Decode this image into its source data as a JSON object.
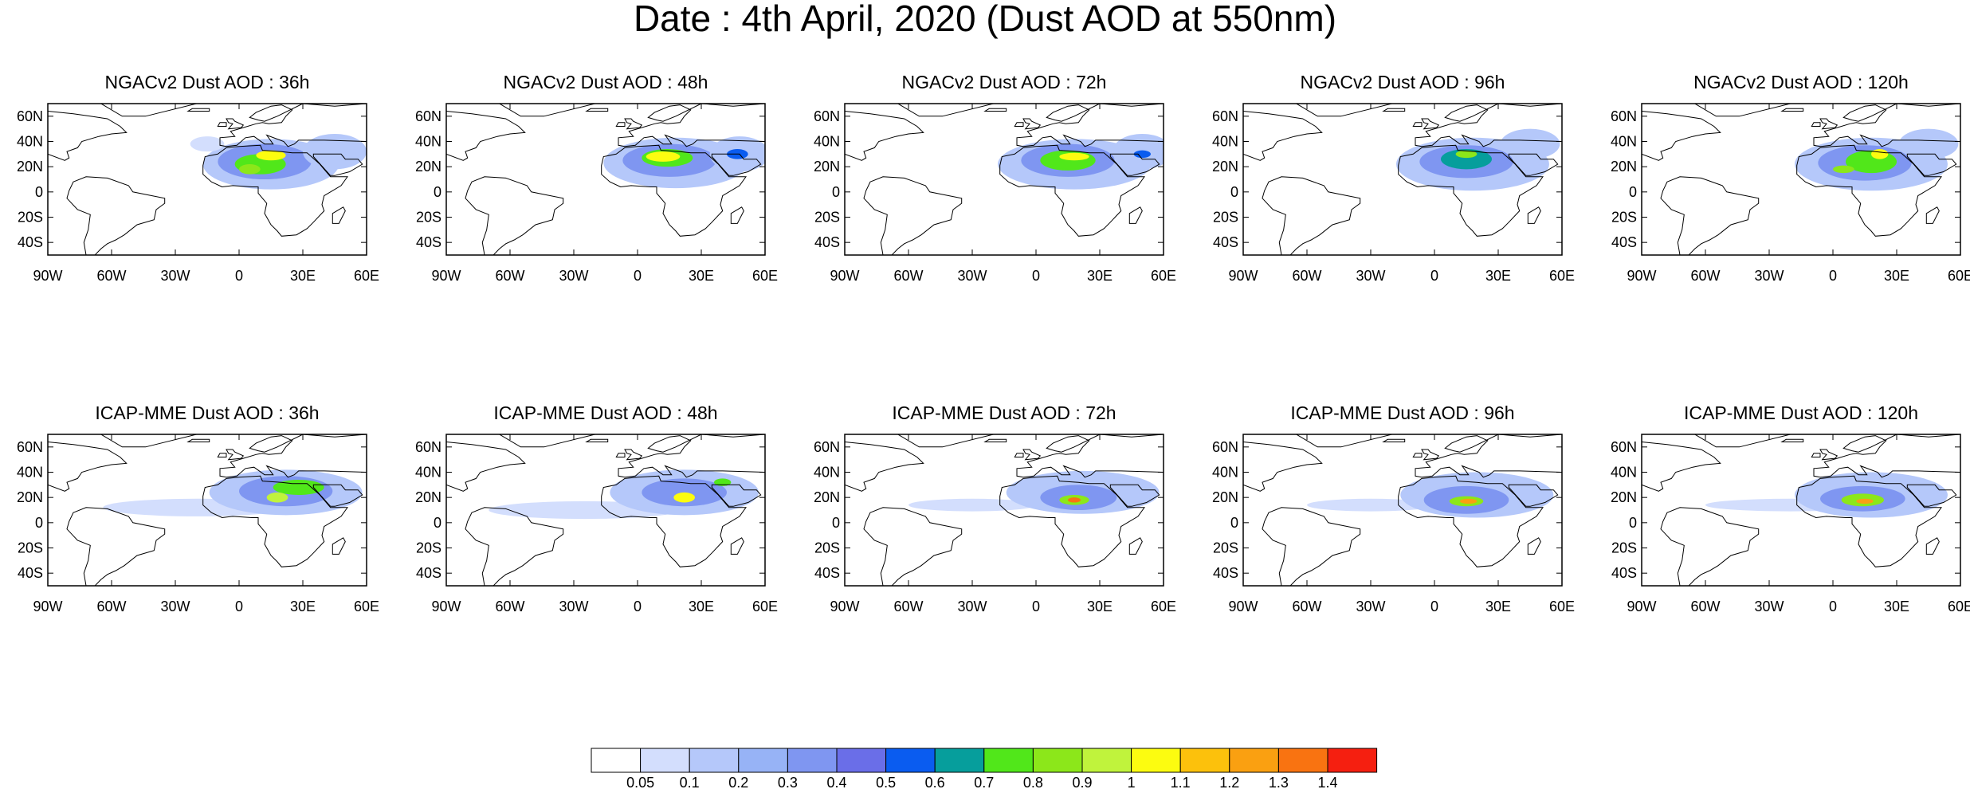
{
  "title": "Date : 4th April, 2020 (Dust AOD at 550nm)",
  "axes": {
    "lat_labels": [
      "60N",
      "40N",
      "20N",
      "0",
      "20S",
      "40S"
    ],
    "lat_values": [
      60,
      40,
      20,
      0,
      -20,
      -40
    ],
    "lon_labels": [
      "90W",
      "60W",
      "30W",
      "0",
      "30E",
      "60E"
    ],
    "lon_values": [
      -90,
      -60,
      -30,
      0,
      30,
      60
    ],
    "lon_range": [
      -90,
      60
    ],
    "lat_range": [
      -50,
      70
    ]
  },
  "colors": {
    "land_outline": "#000000",
    "ocean": "#ffffff"
  },
  "colorbar": {
    "labels": [
      "0.05",
      "0.1",
      "0.2",
      "0.3",
      "0.4",
      "0.5",
      "0.6",
      "0.7",
      "0.8",
      "0.9",
      "1",
      "1.1",
      "1.2",
      "1.3",
      "1.4"
    ],
    "colors": [
      "#ffffff",
      "#d3defd",
      "#b5c8fa",
      "#97b3f6",
      "#7f96f1",
      "#6a6ee8",
      "#0a5cf0",
      "#069e9c",
      "#51e71a",
      "#8ce71a",
      "#c0f33c",
      "#fcfc10",
      "#fcc10c",
      "#faa011",
      "#f97311",
      "#f51f10"
    ]
  },
  "panels": [
    {
      "title": "NGACv2 Dust AOD : 36h",
      "dust": [
        {
          "lon": 15,
          "lat": 22,
          "rlon": 32,
          "rlat": 20,
          "level": 2
        },
        {
          "lon": 12,
          "lat": 24,
          "rlon": 22,
          "rlat": 14,
          "level": 4
        },
        {
          "lon": 10,
          "lat": 22,
          "rlon": 12,
          "rlat": 8,
          "level": 8
        },
        {
          "lon": 15,
          "lat": 29,
          "rlon": 7,
          "rlat": 4,
          "level": 11
        },
        {
          "lon": 5,
          "lat": 18,
          "rlon": 5,
          "rlat": 4,
          "level": 9
        },
        {
          "lon": 45,
          "lat": 32,
          "rlon": 15,
          "rlat": 14,
          "level": 2
        },
        {
          "lon": -15,
          "lat": 38,
          "rlon": 8,
          "rlat": 6,
          "level": 1
        }
      ]
    },
    {
      "title": "NGACv2 Dust AOD : 48h",
      "dust": [
        {
          "lon": 18,
          "lat": 23,
          "rlon": 34,
          "rlat": 20,
          "level": 2
        },
        {
          "lon": 15,
          "lat": 25,
          "rlon": 22,
          "rlat": 13,
          "level": 4
        },
        {
          "lon": 14,
          "lat": 27,
          "rlon": 12,
          "rlat": 7,
          "level": 8
        },
        {
          "lon": 12,
          "lat": 28,
          "rlon": 8,
          "rlat": 4,
          "level": 11
        },
        {
          "lon": 48,
          "lat": 30,
          "rlon": 14,
          "rlat": 14,
          "level": 2
        },
        {
          "lon": 47,
          "lat": 30,
          "rlon": 5,
          "rlat": 4,
          "level": 6
        }
      ]
    },
    {
      "title": "NGACv2 Dust AOD : 72h",
      "dust": [
        {
          "lon": 18,
          "lat": 22,
          "rlon": 36,
          "rlat": 20,
          "level": 2
        },
        {
          "lon": 15,
          "lat": 25,
          "rlon": 22,
          "rlat": 13,
          "level": 4
        },
        {
          "lon": 15,
          "lat": 25,
          "rlon": 13,
          "rlat": 8,
          "level": 8
        },
        {
          "lon": 18,
          "lat": 28,
          "rlon": 7,
          "rlat": 3,
          "level": 11
        },
        {
          "lon": 50,
          "lat": 32,
          "rlon": 14,
          "rlat": 14,
          "level": 2
        },
        {
          "lon": 50,
          "lat": 30,
          "rlon": 4,
          "rlat": 3,
          "level": 6
        }
      ]
    },
    {
      "title": "NGACv2 Dust AOD : 96h",
      "dust": [
        {
          "lon": 18,
          "lat": 22,
          "rlon": 36,
          "rlat": 21,
          "level": 2
        },
        {
          "lon": 15,
          "lat": 24,
          "rlon": 22,
          "rlat": 13,
          "level": 4
        },
        {
          "lon": 15,
          "lat": 26,
          "rlon": 12,
          "rlat": 8,
          "level": 7
        },
        {
          "lon": 15,
          "lat": 30,
          "rlon": 5,
          "rlat": 3,
          "level": 9
        },
        {
          "lon": 45,
          "lat": 38,
          "rlon": 14,
          "rlat": 12,
          "level": 2
        }
      ]
    },
    {
      "title": "NGACv2 Dust AOD : 120h",
      "dust": [
        {
          "lon": 18,
          "lat": 22,
          "rlon": 36,
          "rlat": 21,
          "level": 2
        },
        {
          "lon": 15,
          "lat": 23,
          "rlon": 22,
          "rlat": 14,
          "level": 4
        },
        {
          "lon": 18,
          "lat": 24,
          "rlon": 12,
          "rlat": 9,
          "level": 8
        },
        {
          "lon": 22,
          "lat": 30,
          "rlon": 4,
          "rlat": 4,
          "level": 11
        },
        {
          "lon": 5,
          "lat": 18,
          "rlon": 5,
          "rlat": 3,
          "level": 9
        },
        {
          "lon": 45,
          "lat": 38,
          "rlon": 14,
          "rlat": 12,
          "level": 2
        }
      ]
    },
    {
      "title": "ICAP-MME Dust AOD : 36h",
      "dust": [
        {
          "lon": -20,
          "lat": 12,
          "rlon": 44,
          "rlat": 7,
          "level": 1
        },
        {
          "lon": 22,
          "lat": 24,
          "rlon": 36,
          "rlat": 18,
          "level": 2
        },
        {
          "lon": 22,
          "lat": 25,
          "rlon": 22,
          "rlat": 12,
          "level": 4
        },
        {
          "lon": 28,
          "lat": 28,
          "rlon": 12,
          "rlat": 6,
          "level": 8
        },
        {
          "lon": 18,
          "lat": 20,
          "rlon": 5,
          "rlat": 4,
          "level": 10
        }
      ]
    },
    {
      "title": "ICAP-MME Dust AOD : 48h",
      "dust": [
        {
          "lon": -25,
          "lat": 10,
          "rlon": 45,
          "rlat": 7,
          "level": 1
        },
        {
          "lon": 22,
          "lat": 24,
          "rlon": 35,
          "rlat": 18,
          "level": 2
        },
        {
          "lon": 22,
          "lat": 24,
          "rlon": 20,
          "rlat": 11,
          "level": 4
        },
        {
          "lon": 22,
          "lat": 20,
          "rlon": 5,
          "rlat": 4,
          "level": 11
        },
        {
          "lon": 40,
          "lat": 32,
          "rlon": 4,
          "rlat": 3,
          "level": 8
        }
      ]
    },
    {
      "title": "ICAP-MME Dust AOD : 72h",
      "dust": [
        {
          "lon": -30,
          "lat": 14,
          "rlon": 30,
          "rlat": 5,
          "level": 1
        },
        {
          "lon": 22,
          "lat": 24,
          "rlon": 36,
          "rlat": 17,
          "level": 2
        },
        {
          "lon": 20,
          "lat": 20,
          "rlon": 18,
          "rlat": 10,
          "level": 4
        },
        {
          "lon": 18,
          "lat": 18,
          "rlon": 7,
          "rlat": 4,
          "level": 9
        },
        {
          "lon": 18,
          "lat": 18,
          "rlon": 3,
          "rlat": 2,
          "level": 14
        }
      ]
    },
    {
      "title": "ICAP-MME Dust AOD : 96h",
      "dust": [
        {
          "lon": -30,
          "lat": 14,
          "rlon": 30,
          "rlat": 5,
          "level": 1
        },
        {
          "lon": 20,
          "lat": 22,
          "rlon": 36,
          "rlat": 18,
          "level": 2
        },
        {
          "lon": 15,
          "lat": 18,
          "rlon": 20,
          "rlat": 11,
          "level": 4
        },
        {
          "lon": 15,
          "lat": 17,
          "rlon": 8,
          "rlat": 4,
          "level": 9
        },
        {
          "lon": 16,
          "lat": 17,
          "rlon": 4,
          "rlat": 2,
          "level": 13
        }
      ]
    },
    {
      "title": "ICAP-MME Dust AOD : 120h",
      "dust": [
        {
          "lon": -20,
          "lat": 14,
          "rlon": 40,
          "rlat": 5,
          "level": 1
        },
        {
          "lon": 18,
          "lat": 22,
          "rlon": 36,
          "rlat": 18,
          "level": 2
        },
        {
          "lon": 14,
          "lat": 19,
          "rlon": 20,
          "rlat": 10,
          "level": 4
        },
        {
          "lon": 14,
          "lat": 18,
          "rlon": 10,
          "rlat": 5,
          "level": 9
        },
        {
          "lon": 15,
          "lat": 17,
          "rlon": 4,
          "rlat": 2,
          "level": 13
        }
      ]
    }
  ]
}
